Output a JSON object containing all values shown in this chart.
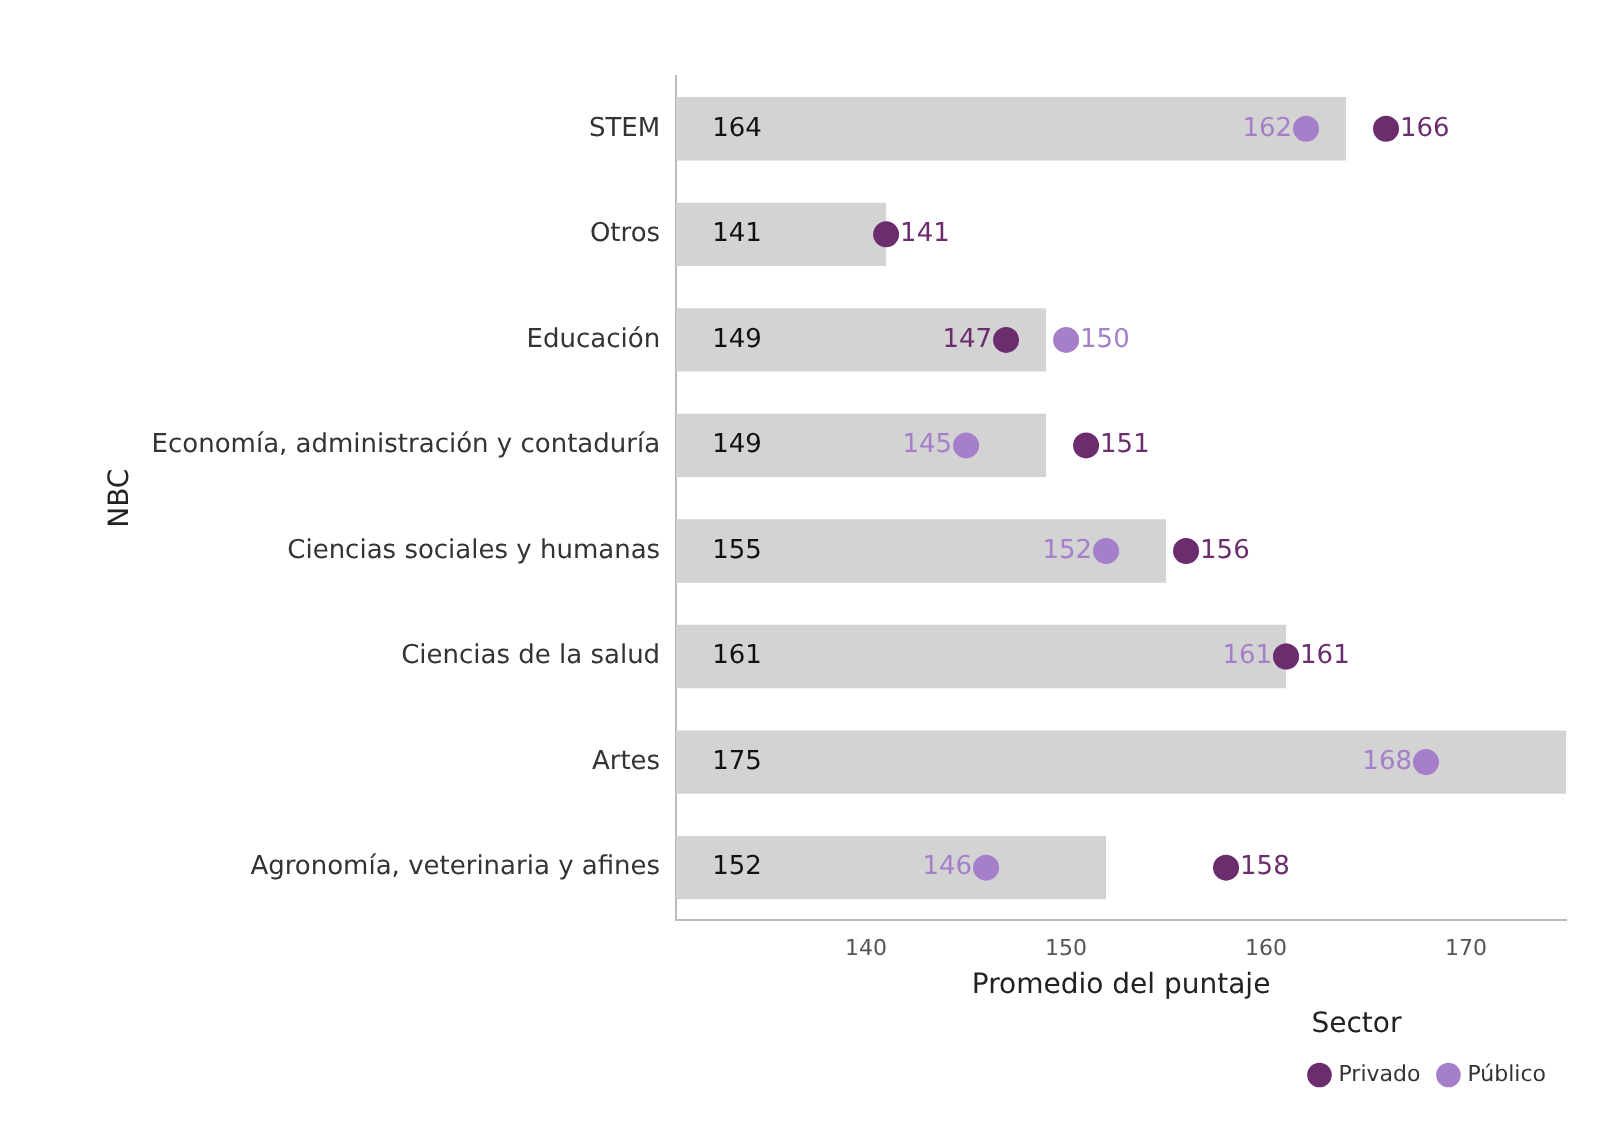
{
  "chart_data": {
    "type": "bar",
    "orientation": "horizontal",
    "xlabel": "Promedio del puntaje",
    "ylabel": "NBC",
    "legend_title": "Sector",
    "legend": "bottom",
    "data_labels": true,
    "grid": false,
    "marker": "circle",
    "categories": [
      "STEM",
      "Otros",
      "Educación",
      "Economía, administración y contaduría",
      "Ciencias sociales y humanas",
      "Ciencias de la salud",
      "Artes",
      "Agronomía, veterinaria y afines"
    ],
    "xlim": [
      130.5,
      175
    ],
    "xticks": [
      140,
      150,
      160,
      170
    ],
    "series": [
      {
        "color": "#d3d3d3",
        "values": [
          164,
          141,
          149,
          149,
          155,
          161,
          175,
          152
        ]
      },
      {
        "type": "scatter",
        "name": "Privado",
        "color": "#6b2d6e",
        "values": [
          166,
          141,
          147,
          151,
          156,
          161,
          null,
          158
        ]
      },
      {
        "type": "scatter",
        "name": "Público",
        "color": "#a57fc9",
        "values": [
          162,
          null,
          150,
          145,
          152,
          161,
          168,
          146
        ]
      }
    ]
  }
}
